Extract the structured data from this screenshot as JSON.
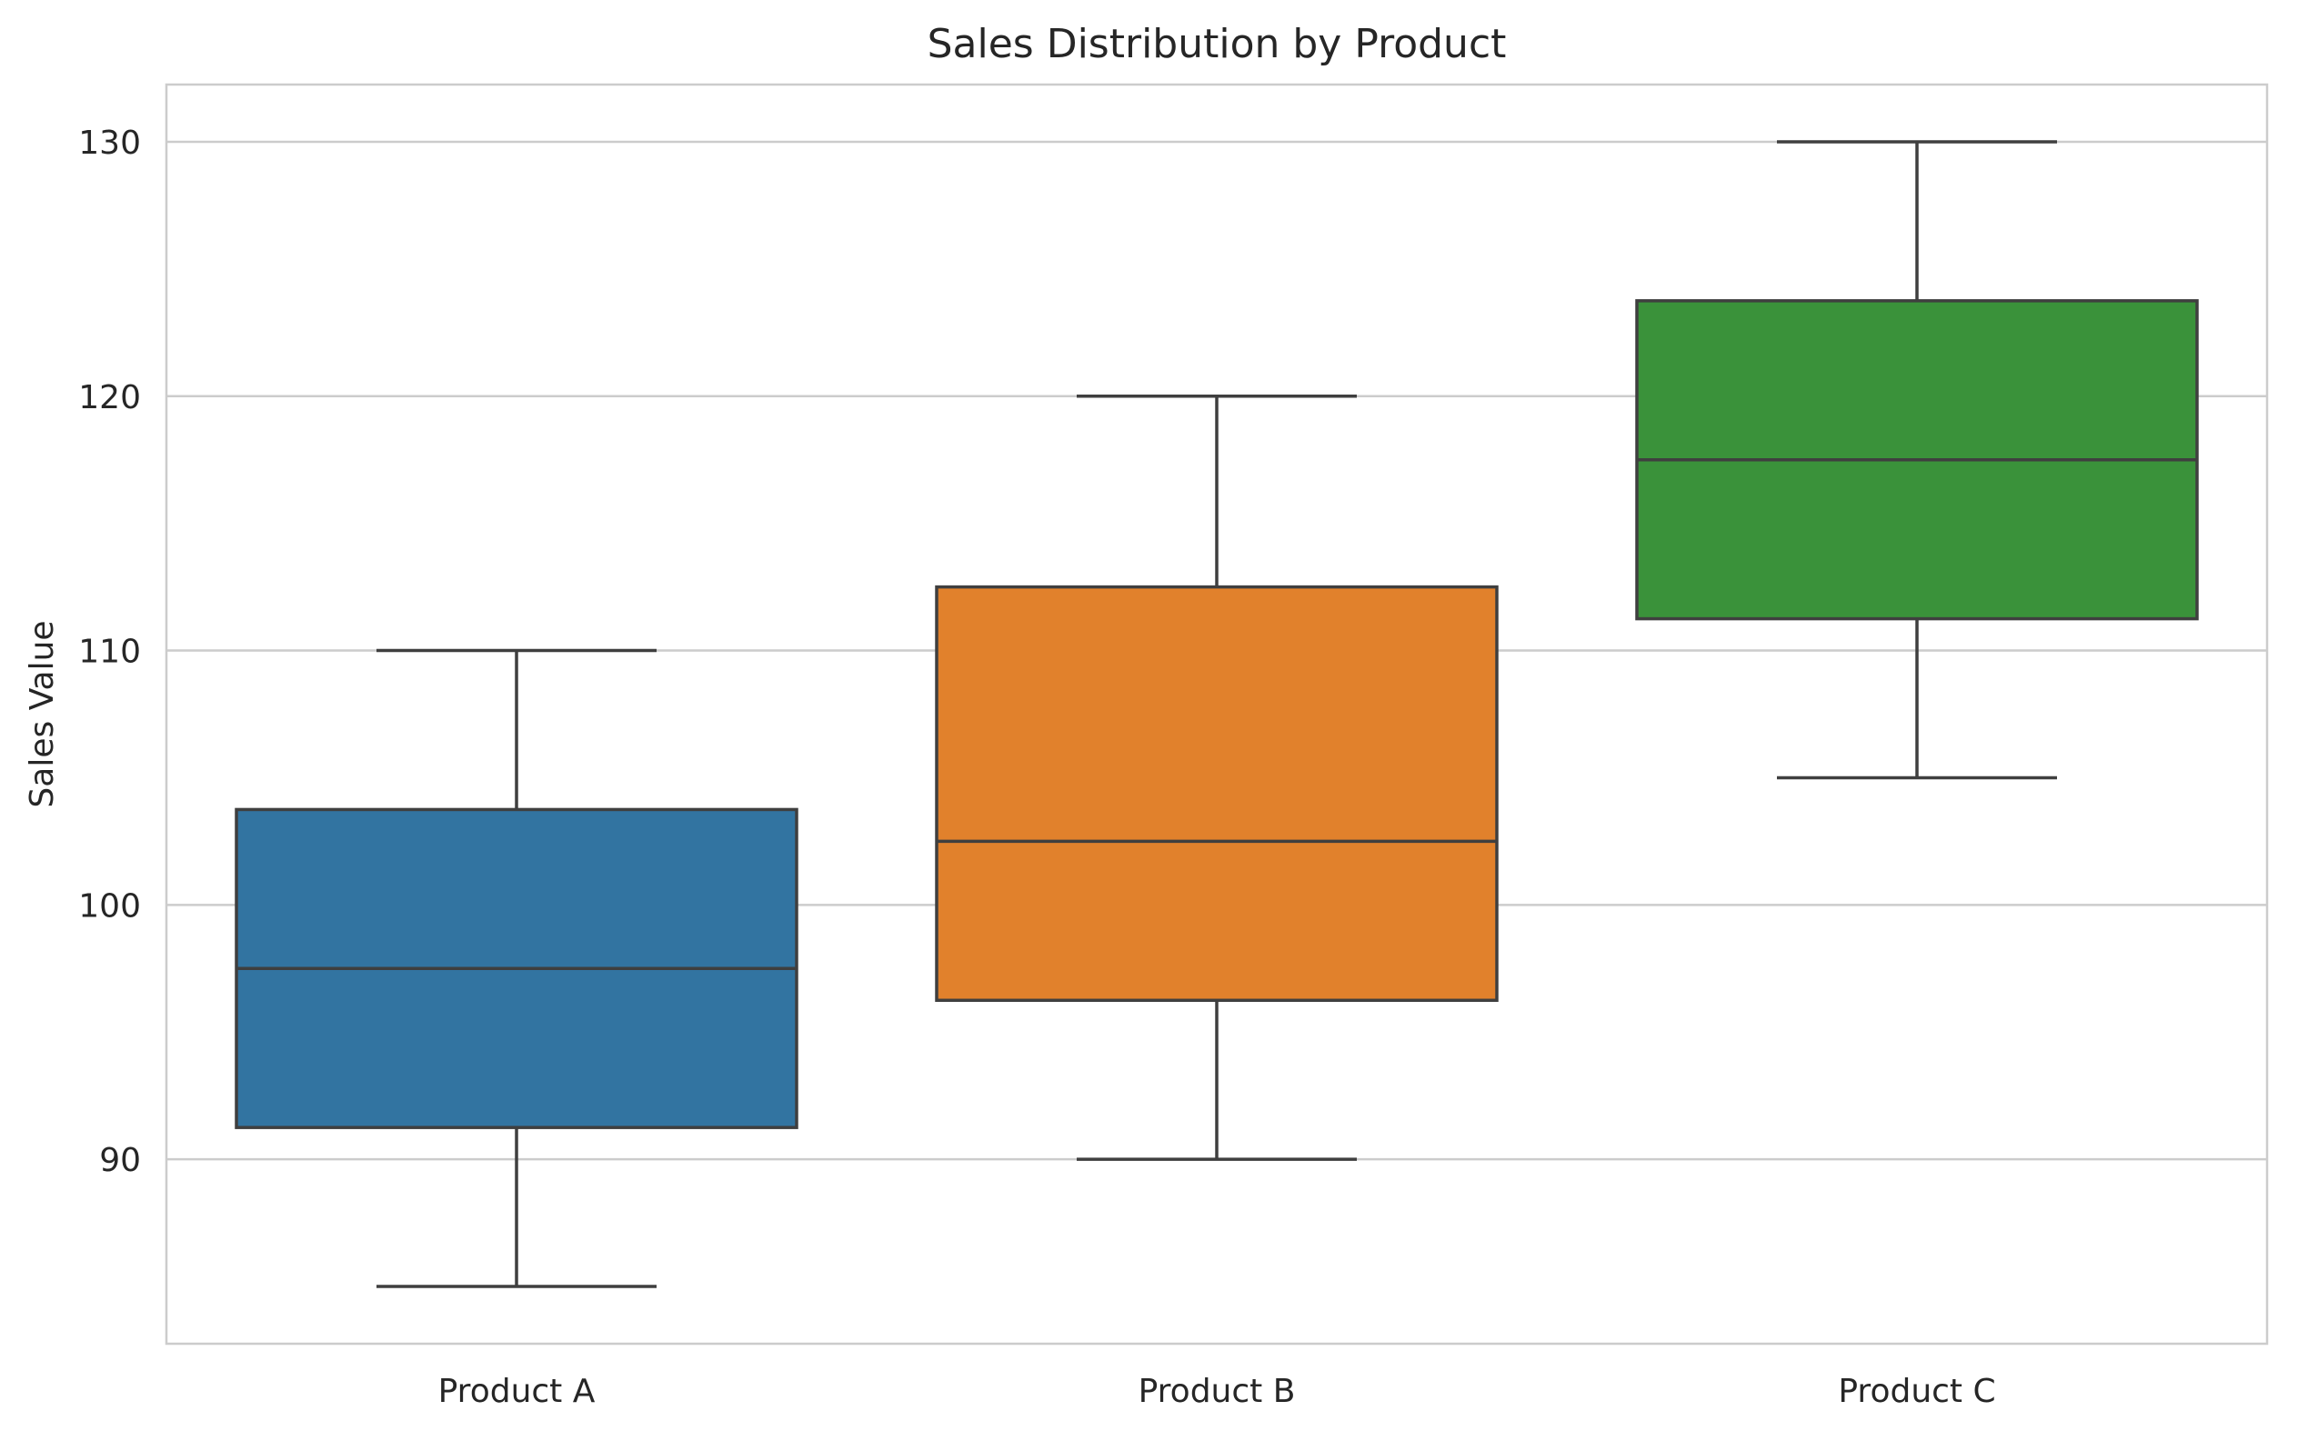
{
  "chart_data": {
    "type": "box",
    "title": "Sales Distribution by Product",
    "xlabel": "",
    "ylabel": "Sales Value",
    "categories": [
      "Product A",
      "Product B",
      "Product C"
    ],
    "boxes": [
      {
        "category": "Product A",
        "whisker_low": 85,
        "q1": 91.25,
        "median": 97.5,
        "q3": 103.75,
        "whisker_high": 110,
        "color": "#3274a1"
      },
      {
        "category": "Product B",
        "whisker_low": 90,
        "q1": 96.25,
        "median": 102.5,
        "q3": 112.5,
        "whisker_high": 120,
        "color": "#e1812c"
      },
      {
        "category": "Product C",
        "whisker_low": 105,
        "q1": 111.25,
        "median": 117.5,
        "q3": 123.75,
        "whisker_high": 130,
        "color": "#3a923a"
      }
    ],
    "yticks": [
      90,
      100,
      110,
      120,
      130
    ],
    "ylim": [
      82.75,
      132.25
    ],
    "grid": "horizontal",
    "colors": {
      "background": "#ffffff",
      "grid": "#cccccc",
      "spine": "#cccccc",
      "line": "#3f3f3f"
    }
  }
}
